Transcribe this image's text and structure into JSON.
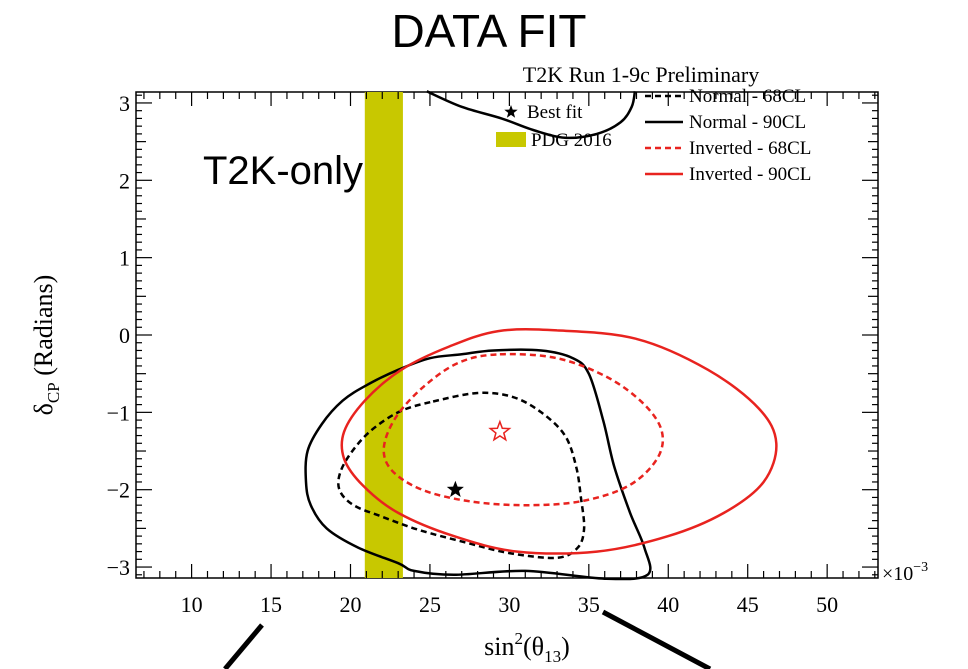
{
  "chart_data": {
    "type": "line",
    "title": "DATA FIT",
    "subtitle": "T2K Run 1-9c Preliminary",
    "annotation": "T2K-only",
    "xlabel_base": "sin",
    "xlabel_sup": "2",
    "xlabel_arg_open": "(θ",
    "xlabel_arg_sub": "13",
    "xlabel_arg_close": ")",
    "ylabel_base": "δ",
    "ylabel_sub": "CP",
    "ylabel_rest": " (Radians)",
    "x_multiplier_base": "×10",
    "x_multiplier_exp": "−3",
    "xlim": [
      6.5,
      53.2
    ],
    "ylim": [
      -3.14159,
      3.14159
    ],
    "x_ticks": [
      10,
      15,
      20,
      25,
      30,
      35,
      40,
      45,
      50
    ],
    "x_tick_labels": [
      "10",
      "15",
      "20",
      "25",
      "30",
      "35",
      "40",
      "45",
      "50"
    ],
    "y_ticks": [
      -3,
      -2,
      -1,
      0,
      1,
      2,
      3
    ],
    "y_tick_labels": [
      "−3",
      "−2",
      "−1",
      "0",
      "1",
      "2",
      "3"
    ],
    "legend_placement": "top-right",
    "grid": false,
    "pdg_band": {
      "name": "PDG 2016",
      "x_range": [
        20.9,
        23.3
      ],
      "color": "#c8c800"
    },
    "best_fit_normal": {
      "name": "Best fit",
      "x": 26.6,
      "y": -2.0,
      "color": "#000000"
    },
    "best_fit_inverted": {
      "x": 29.4,
      "y": -1.25,
      "color": "#e8231f"
    },
    "series": [
      {
        "name": "Normal - 68CL",
        "color": "#000000",
        "dashed": true,
        "points": [
          [
            25.2,
            -0.86
          ],
          [
            28.0,
            -0.75
          ],
          [
            30.2,
            -0.8
          ],
          [
            32.0,
            -1.0
          ],
          [
            33.5,
            -1.3
          ],
          [
            34.2,
            -1.7
          ],
          [
            34.5,
            -2.1
          ],
          [
            34.7,
            -2.5
          ],
          [
            34.3,
            -2.75
          ],
          [
            33.0,
            -2.88
          ],
          [
            30.0,
            -2.82
          ],
          [
            27.2,
            -2.68
          ],
          [
            24.3,
            -2.52
          ],
          [
            22.0,
            -2.35
          ],
          [
            20.2,
            -2.2
          ],
          [
            19.3,
            -2.0
          ],
          [
            19.4,
            -1.75
          ],
          [
            20.3,
            -1.45
          ],
          [
            21.5,
            -1.2
          ],
          [
            23.2,
            -0.98
          ],
          [
            25.2,
            -0.86
          ]
        ]
      },
      {
        "name": "Normal - 90CL",
        "color": "#000000",
        "dashed": false,
        "points": [
          [
            38.7,
            -3.1
          ],
          [
            38.5,
            -2.75
          ],
          [
            37.6,
            -2.3
          ],
          [
            36.6,
            -1.7
          ],
          [
            35.9,
            -1.1
          ],
          [
            35.0,
            -0.5
          ],
          [
            34.0,
            -0.3
          ],
          [
            32.0,
            -0.2
          ],
          [
            29.0,
            -0.2
          ],
          [
            27.0,
            -0.25
          ],
          [
            25.0,
            -0.3
          ],
          [
            23.0,
            -0.45
          ],
          [
            21.0,
            -0.65
          ],
          [
            19.5,
            -0.85
          ],
          [
            18.2,
            -1.15
          ],
          [
            17.3,
            -1.5
          ],
          [
            17.2,
            -1.9
          ],
          [
            17.5,
            -2.2
          ],
          [
            18.5,
            -2.5
          ],
          [
            20.5,
            -2.75
          ],
          [
            23.0,
            -2.95
          ],
          [
            24.0,
            -3.05
          ],
          [
            26.5,
            -3.1
          ],
          [
            31.0,
            -3.05
          ],
          [
            36.0,
            -3.15
          ],
          [
            38.7,
            -3.1
          ]
        ]
      },
      {
        "name": "Normal - 90CL (upper)",
        "color": "#000000",
        "dashed": false,
        "points": [
          [
            24.8,
            3.15
          ],
          [
            27.0,
            2.95
          ],
          [
            29.5,
            2.8
          ],
          [
            31.5,
            2.65
          ],
          [
            33.5,
            2.55
          ],
          [
            35.5,
            2.6
          ],
          [
            37.0,
            2.75
          ],
          [
            37.7,
            2.95
          ],
          [
            37.9,
            3.15
          ]
        ]
      },
      {
        "name": "Inverted - 68CL",
        "color": "#e8231f",
        "dashed": true,
        "points": [
          [
            29.4,
            -0.25
          ],
          [
            33.0,
            -0.3
          ],
          [
            36.2,
            -0.55
          ],
          [
            38.5,
            -0.9
          ],
          [
            39.6,
            -1.25
          ],
          [
            39.3,
            -1.6
          ],
          [
            37.5,
            -1.95
          ],
          [
            34.5,
            -2.15
          ],
          [
            31.0,
            -2.2
          ],
          [
            27.5,
            -2.15
          ],
          [
            24.5,
            -2.0
          ],
          [
            22.6,
            -1.75
          ],
          [
            22.1,
            -1.45
          ],
          [
            22.9,
            -1.05
          ],
          [
            24.7,
            -0.65
          ],
          [
            26.9,
            -0.35
          ],
          [
            29.4,
            -0.25
          ]
        ]
      },
      {
        "name": "Inverted - 90CL",
        "color": "#e8231f",
        "dashed": false,
        "points": [
          [
            33.0,
            0.06
          ],
          [
            38.0,
            -0.05
          ],
          [
            42.5,
            -0.45
          ],
          [
            45.7,
            -0.95
          ],
          [
            46.8,
            -1.4
          ],
          [
            46.0,
            -1.9
          ],
          [
            43.5,
            -2.3
          ],
          [
            40.0,
            -2.6
          ],
          [
            35.5,
            -2.8
          ],
          [
            30.5,
            -2.8
          ],
          [
            26.5,
            -2.6
          ],
          [
            23.0,
            -2.3
          ],
          [
            20.8,
            -1.95
          ],
          [
            19.6,
            -1.6
          ],
          [
            19.6,
            -1.25
          ],
          [
            20.9,
            -0.85
          ],
          [
            23.2,
            -0.45
          ],
          [
            26.2,
            -0.15
          ],
          [
            29.3,
            0.05
          ],
          [
            33.0,
            0.06
          ]
        ]
      }
    ]
  }
}
